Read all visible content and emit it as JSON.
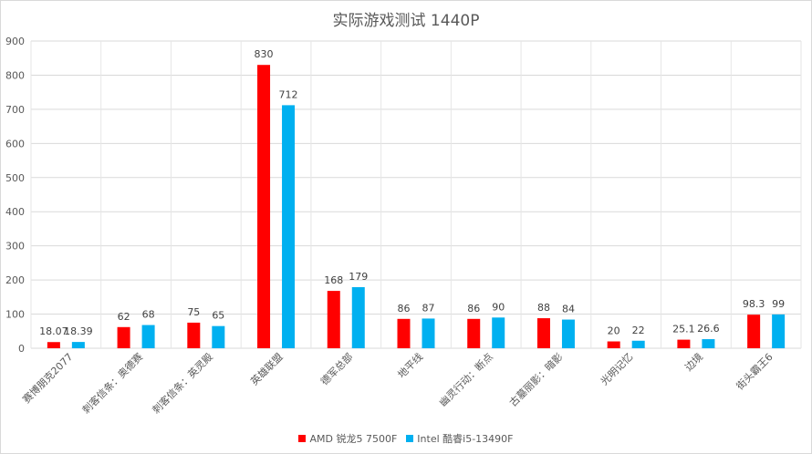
{
  "chart_data": {
    "type": "bar",
    "title": "实际游戏测试 1440P",
    "categories": [
      "赛博朋克2077",
      "刺客信条：奥德赛",
      "刺客信条：英灵殿",
      "英雄联盟",
      "德军总部",
      "地平线",
      "幽灵行动：断点",
      "古墓丽影：暗影",
      "光明记忆",
      "边境",
      "街头霸王6"
    ],
    "series": [
      {
        "name": "AMD 锐龙5 7500F",
        "color": "#ff0000",
        "values": [
          18.07,
          62,
          75,
          830,
          168,
          86,
          86,
          88,
          20,
          25.1,
          98.3
        ],
        "labels": [
          "18.07",
          "62",
          "75",
          "830",
          "168",
          "86",
          "86",
          "88",
          "20",
          "25.1",
          "98.3"
        ]
      },
      {
        "name": "Intel 酷睿i5-13490F",
        "color": "#00b0f0",
        "values": [
          18.39,
          68,
          65,
          712,
          179,
          87,
          90,
          84,
          22,
          26.6,
          99
        ],
        "labels": [
          "18.39",
          "68",
          "65",
          "712",
          "179",
          "87",
          "90",
          "84",
          "22",
          "26.6",
          "99"
        ]
      }
    ],
    "ylim": [
      0,
      900
    ],
    "yticks": [
      "0",
      "100",
      "200",
      "300",
      "400",
      "500",
      "600",
      "700",
      "800",
      "900"
    ],
    "xlabel": "",
    "ylabel": "",
    "grid": true,
    "legend_position": "bottom"
  }
}
